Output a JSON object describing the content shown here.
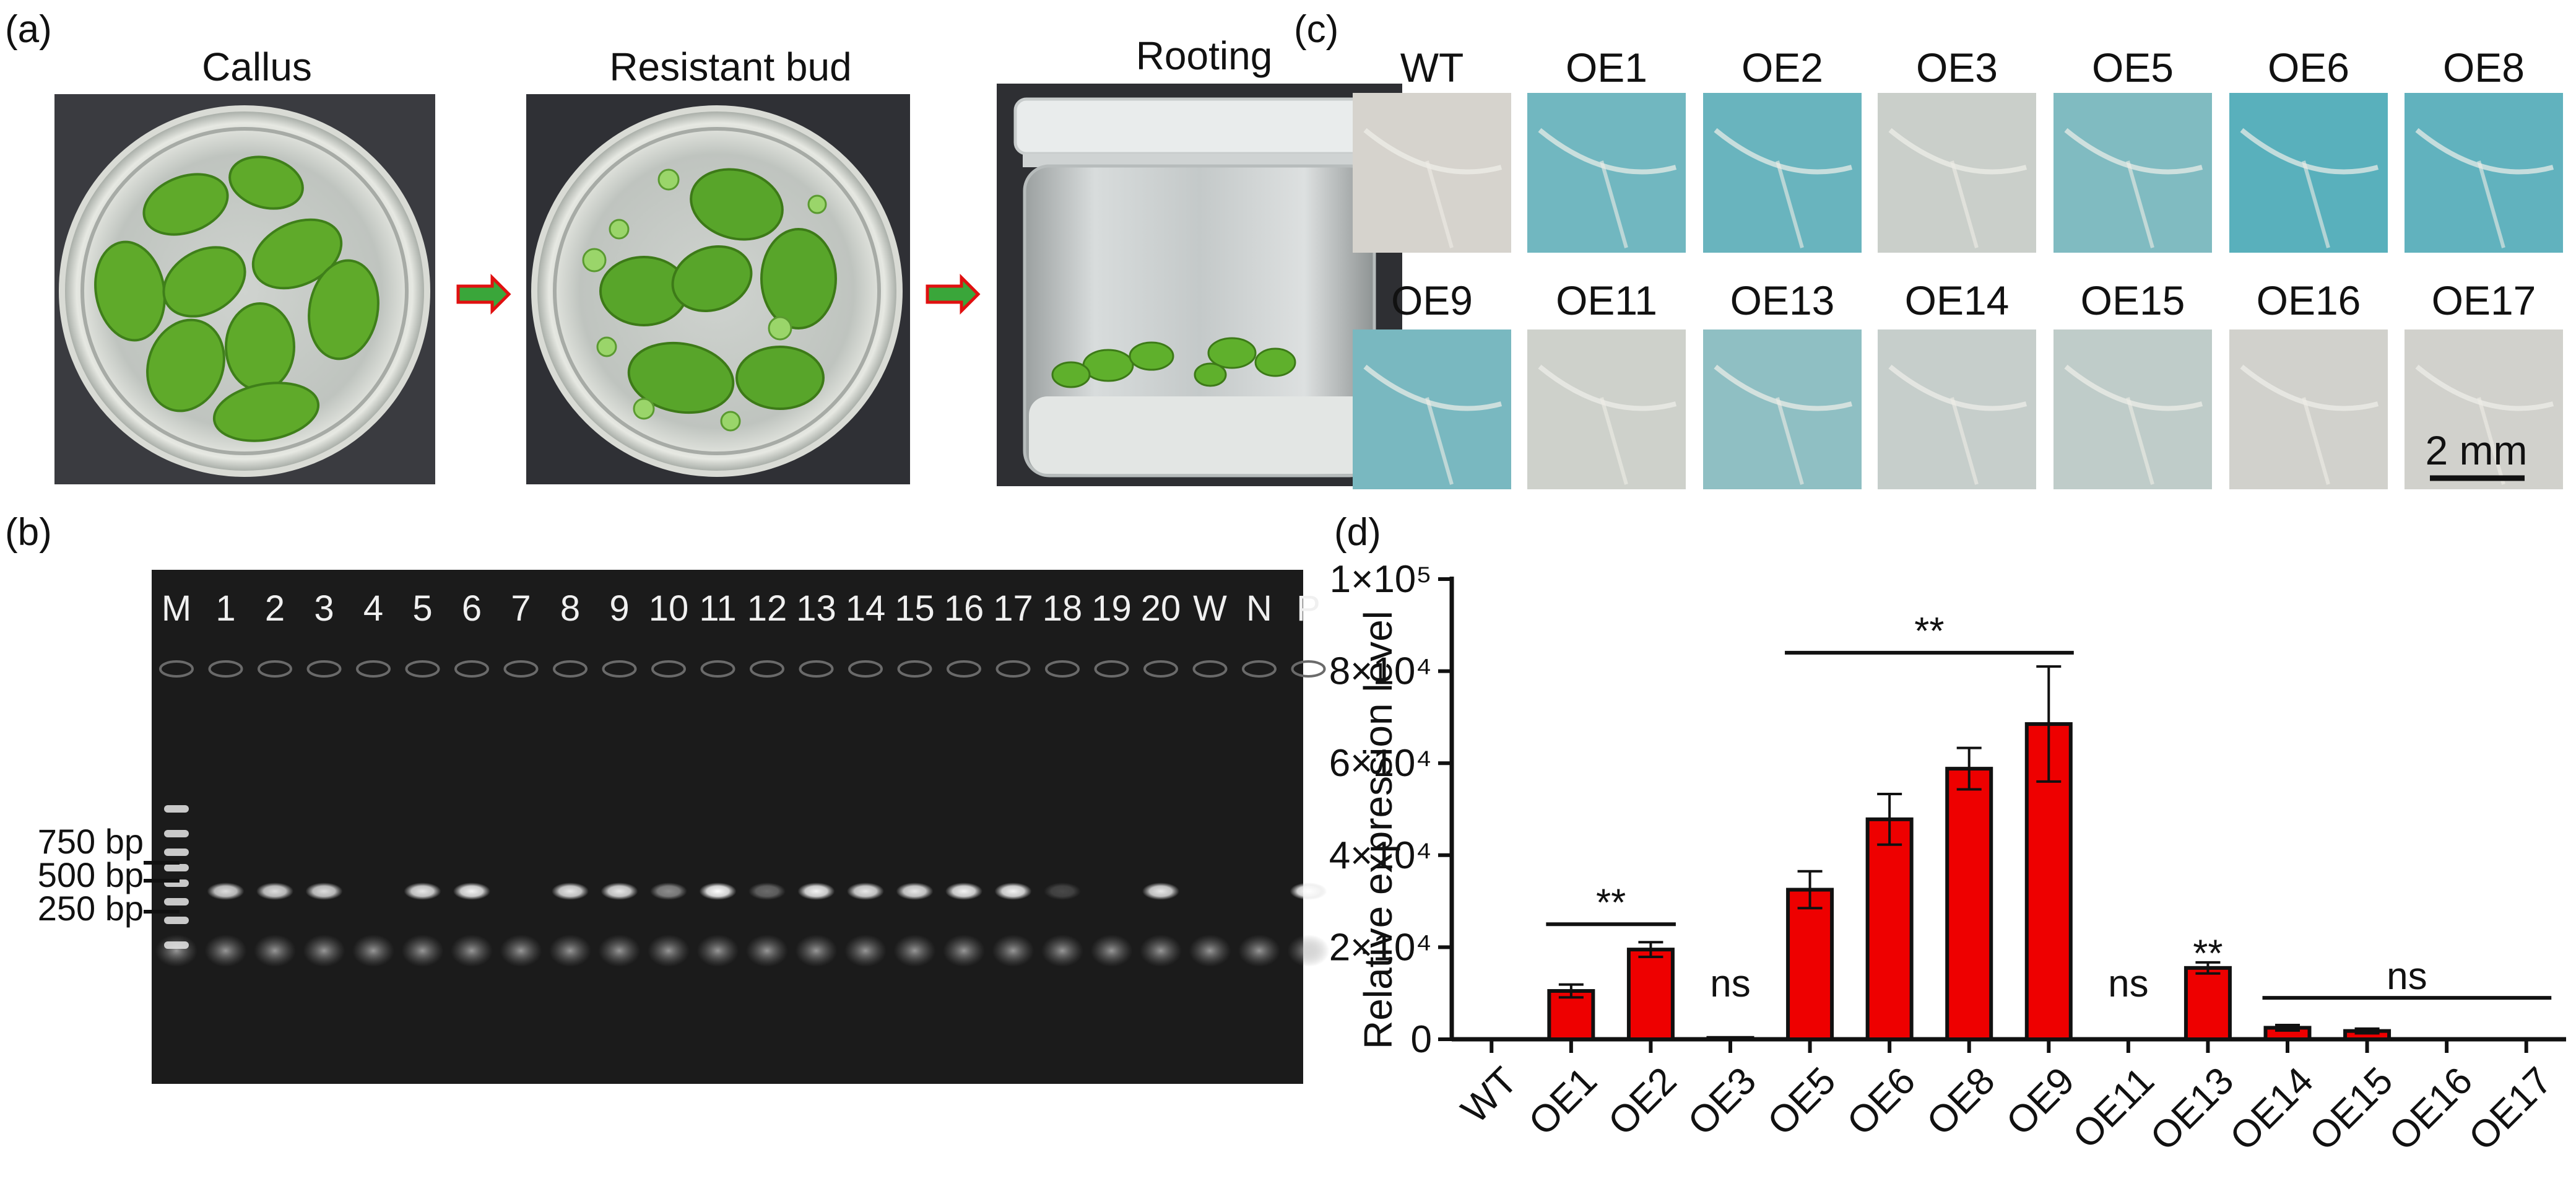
{
  "panels": {
    "a": "(a)",
    "b": "(b)",
    "c": "(c)",
    "d": "(d)"
  },
  "panel_a": {
    "stages": [
      "Callus",
      "Resistant bud",
      "Rooting"
    ]
  },
  "panel_b": {
    "lanes": [
      "M",
      "1",
      "2",
      "3",
      "4",
      "5",
      "6",
      "7",
      "8",
      "9",
      "10",
      "11",
      "12",
      "13",
      "14",
      "15",
      "16",
      "17",
      "18",
      "19",
      "20",
      "W",
      "N",
      "P"
    ],
    "band_present": [
      false,
      true,
      true,
      true,
      false,
      true,
      true,
      false,
      true,
      true,
      true,
      true,
      true,
      true,
      true,
      true,
      true,
      true,
      true,
      false,
      true,
      false,
      false,
      true
    ],
    "band_intensity": [
      0,
      0.85,
      0.85,
      0.85,
      0,
      0.9,
      0.95,
      0,
      0.9,
      0.9,
      0.5,
      1,
      0.35,
      0.95,
      0.9,
      0.9,
      0.95,
      0.95,
      0.2,
      0,
      0.9,
      0,
      0,
      1
    ],
    "ladder": [
      "750 bp",
      "500 bp",
      "250 bp"
    ]
  },
  "panel_c": {
    "row1": [
      "WT",
      "OE1",
      "OE2",
      "OE3",
      "OE5",
      "OE6",
      "OE8"
    ],
    "row2": [
      "OE9",
      "OE11",
      "OE13",
      "OE14",
      "OE15",
      "OE16",
      "OE17"
    ],
    "stain_level_row1": [
      0,
      0.65,
      0.7,
      0.08,
      0.55,
      0.8,
      0.75
    ],
    "stain_level_row2": [
      0.6,
      0.05,
      0.45,
      0.1,
      0.15,
      0.03,
      0.03
    ],
    "scale_bar": "2 mm"
  },
  "chart_data": {
    "type": "bar",
    "categories": [
      "WT",
      "OE1",
      "OE2",
      "OE3",
      "OE5",
      "OE6",
      "OE8",
      "OE9",
      "OE11",
      "OE13",
      "OE14",
      "OE15",
      "OE16",
      "OE17"
    ],
    "values": [
      0,
      10500,
      19500,
      300,
      32500,
      47800,
      58800,
      68500,
      0,
      15500,
      2500,
      1800,
      0,
      0
    ],
    "errors": [
      0,
      1400,
      1600,
      0,
      4000,
      5500,
      4500,
      12500,
      0,
      1200,
      600,
      500,
      0,
      0
    ],
    "xlabel": "",
    "ylabel": "Relative expression level",
    "ylim": [
      0,
      100000
    ],
    "yticks": [
      {
        "value": 0,
        "label": "0"
      },
      {
        "value": 20000,
        "label": "2×10⁴"
      },
      {
        "value": 40000,
        "label": "4×10⁴"
      },
      {
        "value": 60000,
        "label": "6×10⁴"
      },
      {
        "value": 80000,
        "label": "8×10⁴"
      },
      {
        "value": 100000,
        "label": "1×10⁵"
      }
    ],
    "bar_color": "#ee0000",
    "annotations": [
      {
        "text": "**",
        "from": 1,
        "to": 2,
        "y": 25000,
        "line": true
      },
      {
        "text": "ns",
        "from": 3,
        "to": 3,
        "y": 12000,
        "line": false
      },
      {
        "text": "**",
        "from": 4,
        "to": 7,
        "y": 84000,
        "line": true
      },
      {
        "text": "ns",
        "from": 8,
        "to": 8,
        "y": 12000,
        "line": false
      },
      {
        "text": "**",
        "from": 9,
        "to": 9,
        "y": 18500,
        "line": false
      },
      {
        "text": "ns",
        "from": 10,
        "to": 13,
        "y": 9000,
        "line": true
      }
    ]
  }
}
